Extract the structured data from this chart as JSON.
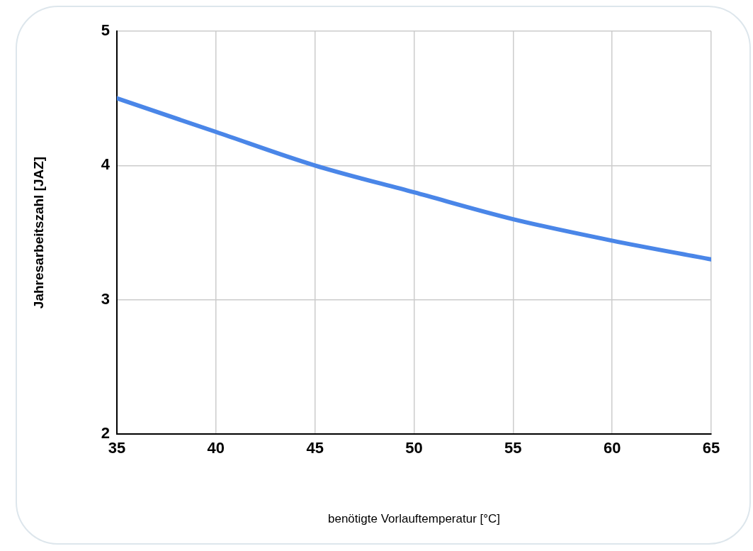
{
  "chart_data": {
    "type": "line",
    "xlabel": "benötigte Vorlauftemperatur [°C]",
    "ylabel": "Jahresarbeitszahl [JAZ]",
    "x": [
      35,
      40,
      45,
      50,
      55,
      60,
      65
    ],
    "series": [
      {
        "color": "#4a86e8",
        "values": [
          4.5,
          4.25,
          4.0,
          3.8,
          3.6,
          3.44,
          3.3
        ]
      }
    ],
    "xlim": [
      35,
      65
    ],
    "xticks": [
      35,
      40,
      45,
      50,
      55,
      60,
      65
    ],
    "ylim": [
      2,
      5
    ],
    "yticks": [
      2,
      3,
      4,
      5
    ],
    "grid": true,
    "legend": false,
    "marker": "none",
    "line_style": "solid"
  }
}
